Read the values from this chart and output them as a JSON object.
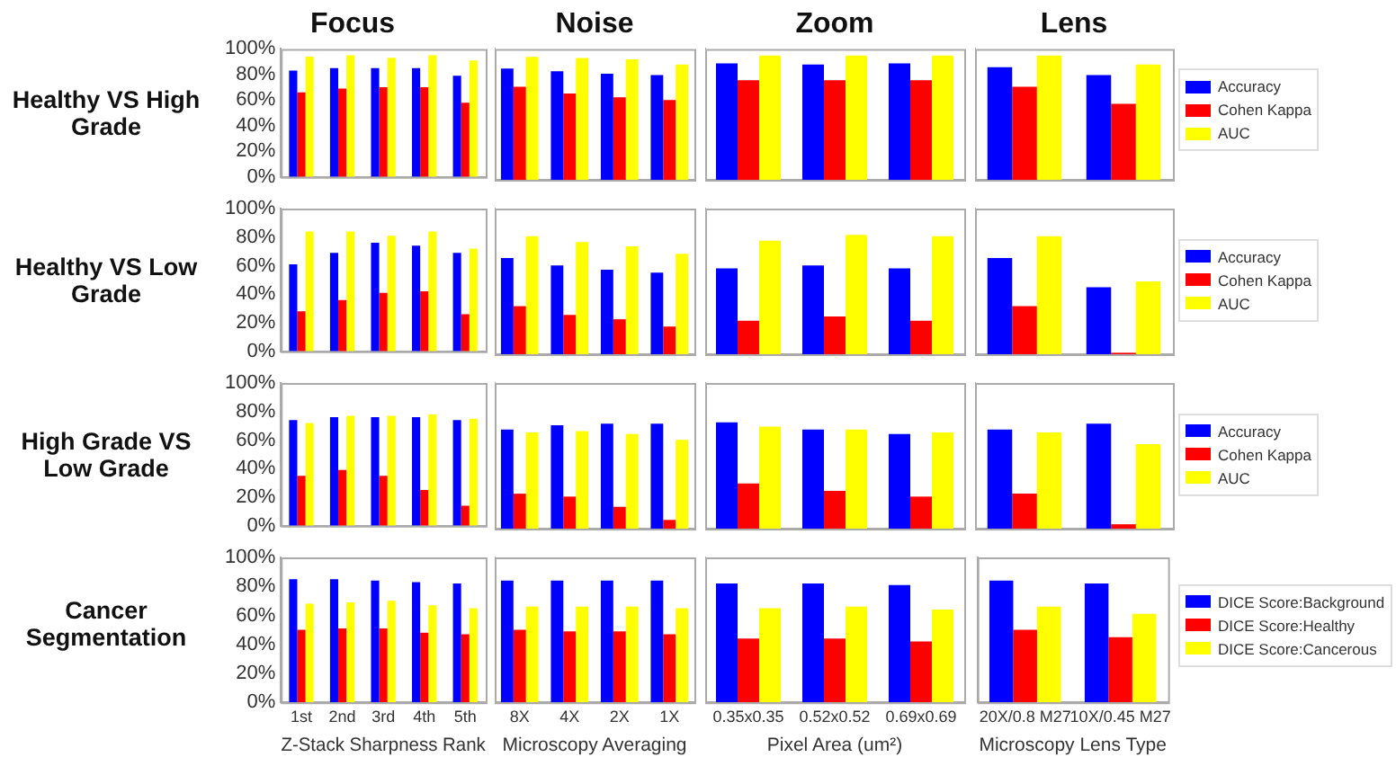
{
  "chart_data": [
    {
      "type": "bar",
      "title": "Focus",
      "ylabel": "Healthy VS High Grade",
      "categories": [
        null,
        null,
        null,
        null,
        null
      ],
      "tick_labels": "y",
      "ylim": [
        0,
        100
      ],
      "yticks": [
        {
          "value": 0,
          "label": "0%"
        },
        {
          "value": 20,
          "label": "20%"
        },
        {
          "value": 40,
          "label": "40%"
        },
        {
          "value": 60,
          "label": "60%"
        },
        {
          "value": 80,
          "label": "80%"
        },
        {
          "value": 100,
          "label": "100%"
        }
      ],
      "series": [
        {
          "color": "#0000ff",
          "values": [
            83,
            85,
            85,
            85,
            79
          ]
        },
        {
          "color": "#ff0000",
          "values": [
            66,
            69,
            70,
            70,
            58
          ]
        },
        {
          "color": "#ffff00",
          "values": [
            94,
            95,
            93,
            95,
            91
          ]
        }
      ]
    },
    {
      "type": "bar",
      "title": "Noise",
      "categories": [
        null,
        null,
        null,
        null
      ],
      "tick_labels": false,
      "ylim": [
        0,
        100
      ],
      "series": [
        {
          "color": "#0000ff",
          "values": [
            85,
            83,
            81,
            80
          ]
        },
        {
          "color": "#ff0000",
          "values": [
            71,
            66,
            63,
            61
          ]
        },
        {
          "color": "#ffff00",
          "values": [
            94,
            93,
            92,
            88
          ]
        }
      ]
    },
    {
      "type": "bar",
      "title": "Zoom",
      "categories": [
        null,
        null,
        null
      ],
      "tick_labels": false,
      "ylim": [
        0,
        100
      ],
      "series": [
        {
          "color": "#0000ff",
          "values": [
            89,
            88,
            89
          ]
        },
        {
          "color": "#ff0000",
          "values": [
            76,
            76,
            76
          ]
        },
        {
          "color": "#ffff00",
          "values": [
            95,
            95,
            95
          ]
        }
      ]
    },
    {
      "type": "bar",
      "title": "Lens",
      "categories": [
        null,
        null
      ],
      "tick_labels": false,
      "legend": "right",
      "ylim": [
        0,
        100
      ],
      "series": [
        {
          "name": "Accuracy",
          "color": "#0000ff",
          "values": [
            86,
            80
          ]
        },
        {
          "name": "Cohen Kappa",
          "color": "#ff0000",
          "values": [
            71,
            58
          ]
        },
        {
          "name": "AUC",
          "color": "#ffff00",
          "values": [
            95,
            88
          ]
        }
      ]
    },
    {
      "type": "bar",
      "ylabel": "Healthy VS Low Grade",
      "categories": [
        null,
        null,
        null,
        null,
        null
      ],
      "tick_labels": "y",
      "ylim": [
        0,
        100
      ],
      "yticks": [
        {
          "value": 0,
          "label": "0%"
        },
        {
          "value": 20,
          "label": "20%"
        },
        {
          "value": 40,
          "label": "40%"
        },
        {
          "value": 60,
          "label": "60%"
        },
        {
          "value": 80,
          "label": "80%"
        },
        {
          "value": 100,
          "label": "100%"
        }
      ],
      "series": [
        {
          "color": "#0000ff",
          "values": [
            61,
            69,
            76,
            74,
            69
          ]
        },
        {
          "color": "#ff0000",
          "values": [
            28,
            36,
            41,
            42,
            26
          ]
        },
        {
          "color": "#ffff00",
          "values": [
            84,
            84,
            81,
            84,
            72
          ]
        }
      ]
    },
    {
      "type": "bar",
      "categories": [
        null,
        null,
        null,
        null
      ],
      "tick_labels": false,
      "ylim": [
        0,
        100
      ],
      "series": [
        {
          "color": "#0000ff",
          "values": [
            66,
            61,
            58,
            56
          ]
        },
        {
          "color": "#ff0000",
          "values": [
            33,
            27,
            24,
            19
          ]
        },
        {
          "color": "#ffff00",
          "values": [
            81,
            77,
            74,
            69
          ]
        }
      ]
    },
    {
      "type": "bar",
      "categories": [
        null,
        null,
        null
      ],
      "tick_labels": false,
      "ylim": [
        0,
        100
      ],
      "series": [
        {
          "color": "#0000ff",
          "values": [
            59,
            61,
            59
          ]
        },
        {
          "color": "#ff0000",
          "values": [
            23,
            26,
            23
          ]
        },
        {
          "color": "#ffff00",
          "values": [
            78,
            82,
            81
          ]
        }
      ]
    },
    {
      "type": "bar",
      "categories": [
        null,
        null
      ],
      "tick_labels": false,
      "legend": "right",
      "ylim": [
        0,
        100
      ],
      "series": [
        {
          "name": "Accuracy",
          "color": "#0000ff",
          "values": [
            66,
            46
          ]
        },
        {
          "name": "Cohen Kappa",
          "color": "#ff0000",
          "values": [
            33,
            1
          ]
        },
        {
          "name": "AUC",
          "color": "#ffff00",
          "values": [
            81,
            50
          ]
        }
      ]
    },
    {
      "type": "bar",
      "ylabel": "High Grade VS Low Grade",
      "categories": [
        null,
        null,
        null,
        null,
        null
      ],
      "tick_labels": "y",
      "ylim": [
        0,
        100
      ],
      "yticks": [
        {
          "value": 0,
          "label": "0%"
        },
        {
          "value": 20,
          "label": "20%"
        },
        {
          "value": 40,
          "label": "40%"
        },
        {
          "value": 60,
          "label": "60%"
        },
        {
          "value": 80,
          "label": "80%"
        },
        {
          "value": 100,
          "label": "100%"
        }
      ],
      "series": [
        {
          "color": "#0000ff",
          "values": [
            74,
            76,
            76,
            76,
            74
          ]
        },
        {
          "color": "#ff0000",
          "values": [
            35,
            39,
            35,
            25,
            14
          ]
        },
        {
          "color": "#ffff00",
          "values": [
            72,
            77,
            77,
            78,
            75
          ]
        }
      ]
    },
    {
      "type": "bar",
      "categories": [
        null,
        null,
        null,
        null
      ],
      "tick_labels": false,
      "ylim": [
        0,
        100
      ],
      "series": [
        {
          "color": "#0000ff",
          "values": [
            68,
            71,
            72,
            72
          ]
        },
        {
          "color": "#ff0000",
          "values": [
            24,
            22,
            15,
            6
          ]
        },
        {
          "color": "#ffff00",
          "values": [
            66,
            67,
            65,
            61
          ]
        }
      ]
    },
    {
      "type": "bar",
      "categories": [
        null,
        null,
        null
      ],
      "tick_labels": false,
      "ylim": [
        0,
        100
      ],
      "series": [
        {
          "color": "#0000ff",
          "values": [
            73,
            68,
            65
          ]
        },
        {
          "color": "#ff0000",
          "values": [
            31,
            26,
            22
          ]
        },
        {
          "color": "#ffff00",
          "values": [
            70,
            68,
            66
          ]
        }
      ]
    },
    {
      "type": "bar",
      "categories": [
        null,
        null
      ],
      "tick_labels": false,
      "legend": "right",
      "ylim": [
        0,
        100
      ],
      "series": [
        {
          "name": "Accuracy",
          "color": "#0000ff",
          "values": [
            68,
            72
          ]
        },
        {
          "name": "Cohen Kappa",
          "color": "#ff0000",
          "values": [
            24,
            3
          ]
        },
        {
          "name": "AUC",
          "color": "#ffff00",
          "values": [
            66,
            58
          ]
        }
      ]
    },
    {
      "type": "bar",
      "ylabel": "Cancer Segmentation",
      "xlabel": "Z-Stack Sharpness Rank",
      "categories": [
        "1st",
        "2nd",
        "3rd",
        "4th",
        "5th"
      ],
      "ylim": [
        0,
        100
      ],
      "yticks": [
        {
          "value": 0,
          "label": "0%"
        },
        {
          "value": 20,
          "label": "20%"
        },
        {
          "value": 40,
          "label": "40%"
        },
        {
          "value": 60,
          "label": "60%"
        },
        {
          "value": 80,
          "label": "80%"
        },
        {
          "value": 100,
          "label": "100%"
        }
      ],
      "series": [
        {
          "color": "#0000ff",
          "values": [
            85,
            85,
            84,
            83,
            82
          ]
        },
        {
          "color": "#ff0000",
          "values": [
            50,
            51,
            51,
            48,
            47
          ]
        },
        {
          "color": "#ffff00",
          "values": [
            68,
            69,
            70,
            67,
            65
          ]
        }
      ]
    },
    {
      "type": "bar",
      "xlabel": "Microscopy Averaging",
      "categories": [
        "8X",
        "4X",
        "2X",
        "1X"
      ],
      "tick_labels": "x",
      "ylim": [
        0,
        100
      ],
      "series": [
        {
          "color": "#0000ff",
          "values": [
            84,
            84,
            84,
            84
          ]
        },
        {
          "color": "#ff0000",
          "values": [
            50,
            49,
            49,
            47
          ]
        },
        {
          "color": "#ffff00",
          "values": [
            66,
            66,
            66,
            65
          ]
        }
      ]
    },
    {
      "type": "bar",
      "xlabel": "Pixel Area (um²)",
      "categories": [
        "0.35x0.35",
        "0.52x0.52",
        "0.69x0.69"
      ],
      "tick_labels": "x",
      "ylim": [
        0,
        100
      ],
      "series": [
        {
          "color": "#0000ff",
          "values": [
            82,
            82,
            81
          ]
        },
        {
          "color": "#ff0000",
          "values": [
            44,
            44,
            42
          ]
        },
        {
          "color": "#ffff00",
          "values": [
            65,
            66,
            64
          ]
        }
      ]
    },
    {
      "type": "bar",
      "xlabel": "Microscopy Lens Type",
      "categories": [
        "20X/0.8 M27",
        "10X/0.45 M27"
      ],
      "tick_labels": "x",
      "legend": "right",
      "ylim": [
        0,
        100
      ],
      "series": [
        {
          "name": "DICE Score:Background",
          "color": "#0000ff",
          "values": [
            84,
            82
          ]
        },
        {
          "name": "DICE Score:Healthy",
          "color": "#ff0000",
          "values": [
            50,
            45
          ]
        },
        {
          "name": "DICE Score:Cancerous",
          "color": "#ffff00",
          "values": [
            66,
            61
          ]
        }
      ]
    }
  ]
}
